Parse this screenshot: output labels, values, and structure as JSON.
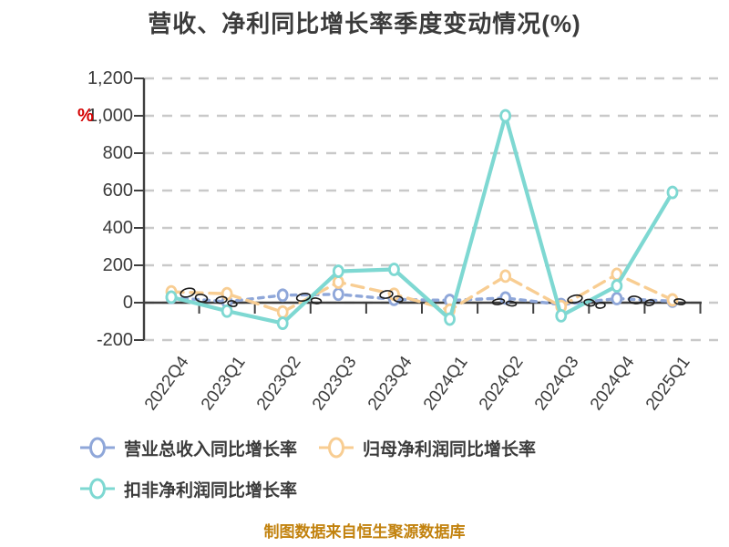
{
  "page": {
    "background": "#ffffff"
  },
  "chart_data": {
    "type": "line",
    "title": "营收、净利同比增长率季度变动情况(%)",
    "ylabel": "%",
    "categories": [
      "2022Q4",
      "2023Q1",
      "2023Q2",
      "2023Q3",
      "2023Q4",
      "2024Q1",
      "2024Q2",
      "2024Q3",
      "2024Q4",
      "2025Q1"
    ],
    "series": [
      {
        "key": "total-revenue-yoy",
        "name": "营业总收入同比增长率",
        "color": "#8fa7d9",
        "line_style": "dotted",
        "values": [
          28,
          5,
          40,
          45,
          18,
          12,
          25,
          -10,
          22,
          8
        ]
      },
      {
        "key": "net-profit-yoy",
        "name": "归母净利润同比增长率",
        "color": "#f8cd92",
        "line_style": "dashed",
        "values": [
          58,
          48,
          -50,
          110,
          45,
          -40,
          142,
          -20,
          152,
          15
        ]
      },
      {
        "key": "non-gaap-net-profit-yoy",
        "name": "扣非净利润同比增长率",
        "color": "#7ed8d2",
        "line_style": "solid",
        "values": [
          30,
          -45,
          -110,
          168,
          178,
          -88,
          1000,
          -70,
          90,
          590
        ]
      }
    ],
    "ylim": [
      -200,
      1200
    ],
    "yticks": [
      1200,
      1000,
      800,
      600,
      400,
      200,
      0,
      -200
    ],
    "ytick_labels": [
      "1,200",
      "1,000",
      "800",
      "600",
      "400",
      "200",
      "0",
      "-200"
    ],
    "grid": true,
    "legend_position": "bottom"
  },
  "footer": {
    "note": "制图数据来自恒生聚源数据库",
    "color": "#c2820e"
  },
  "colors": {
    "title_text": "#3b3b3b",
    "axis": "#3f3f3f",
    "grid": "#c9c9c9",
    "tick_label": "#3b3b3b",
    "ylabel_red": "#d40000"
  }
}
